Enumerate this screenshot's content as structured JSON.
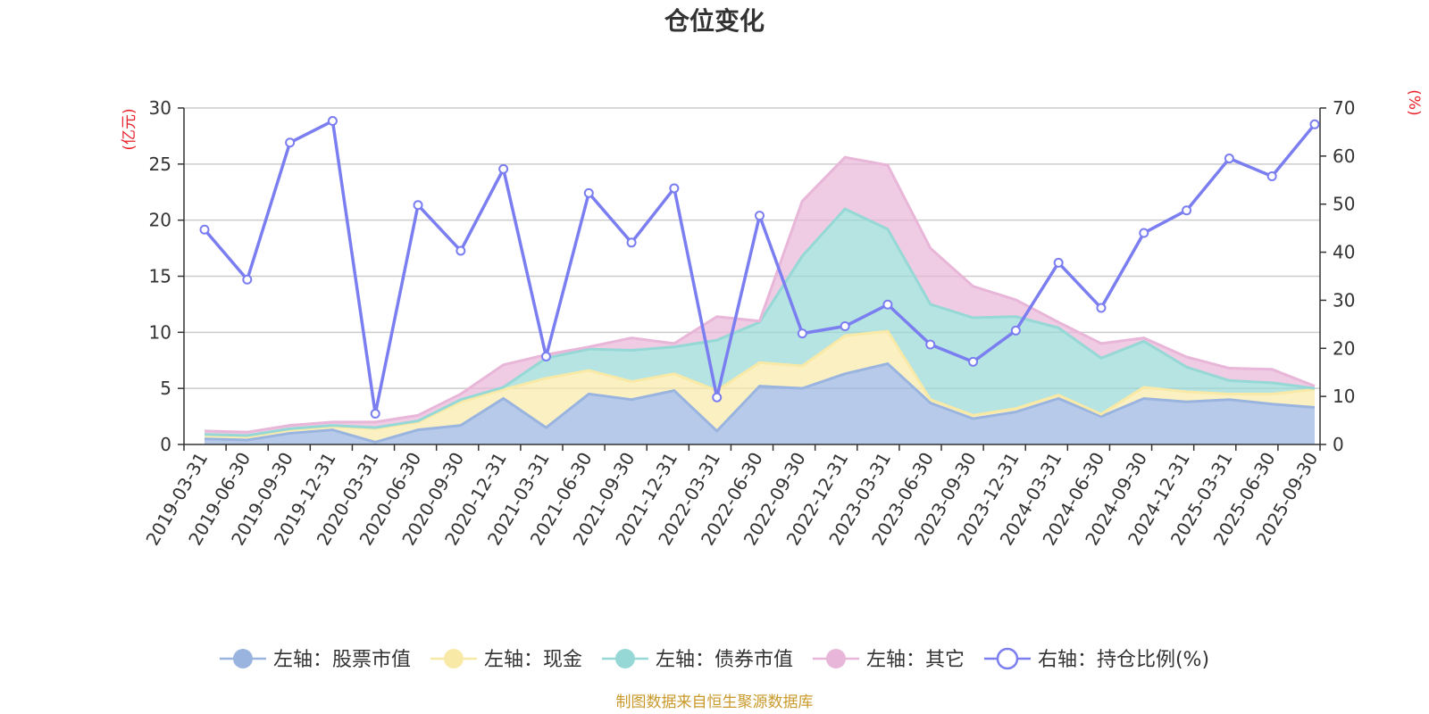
{
  "chart_data": {
    "type": "area",
    "title": "仓位变化",
    "left_axis_label": "(亿元)",
    "right_axis_label": "(%)",
    "categories": [
      "2019-03-31",
      "2019-06-30",
      "2019-09-30",
      "2019-12-31",
      "2020-03-31",
      "2020-06-30",
      "2020-09-30",
      "2020-12-31",
      "2021-03-31",
      "2021-06-30",
      "2021-09-30",
      "2021-12-31",
      "2022-03-31",
      "2022-06-30",
      "2022-09-30",
      "2022-12-31",
      "2023-03-31",
      "2023-06-30",
      "2023-09-30",
      "2023-12-31",
      "2024-03-31",
      "2024-06-30",
      "2024-09-30",
      "2024-12-31",
      "2025-03-31",
      "2025-06-30",
      "2025-09-30"
    ],
    "ylim_left": [
      0,
      30
    ],
    "yticks_left": [
      0,
      5,
      10,
      15,
      20,
      25,
      30
    ],
    "ylim_right": [
      0,
      70
    ],
    "yticks_right": [
      0,
      10,
      20,
      30,
      40,
      50,
      60,
      70
    ],
    "series": [
      {
        "name": "左轴：股票市值",
        "axis": "left",
        "stacked": true,
        "color": "#9ab4e0",
        "values": [
          0.5,
          0.4,
          1.0,
          1.3,
          0.2,
          1.3,
          1.7,
          4.1,
          1.5,
          4.5,
          4.0,
          4.8,
          1.2,
          5.2,
          5.0,
          6.3,
          7.2,
          3.7,
          2.3,
          2.9,
          4.1,
          2.5,
          4.1,
          3.8,
          4.0,
          3.6,
          3.3
        ]
      },
      {
        "name": "左轴：现金",
        "axis": "left",
        "stacked": true,
        "color": "#f9e9a6",
        "values": [
          0.3,
          0.3,
          0.3,
          0.3,
          1.2,
          0.7,
          2.1,
          0.8,
          4.4,
          2.1,
          1.6,
          1.5,
          3.6,
          2.1,
          2.0,
          3.4,
          2.9,
          0.3,
          0.3,
          0.3,
          0.3,
          0.2,
          1.0,
          0.9,
          0.5,
          0.9,
          1.6
        ]
      },
      {
        "name": "左轴：债券市值",
        "axis": "left",
        "stacked": true,
        "color": "#96d8d6",
        "values": [
          0.1,
          0.1,
          0.1,
          0.1,
          0.1,
          0.1,
          0.2,
          0.2,
          1.8,
          1.9,
          2.8,
          2.4,
          4.5,
          3.6,
          9.8,
          11.3,
          9.1,
          8.5,
          8.7,
          8.2,
          6.0,
          5.0,
          4.1,
          2.2,
          1.2,
          1.0,
          0.1
        ]
      },
      {
        "name": "左轴：其它",
        "axis": "left",
        "stacked": true,
        "color": "#e8b6d8",
        "values": [
          0.3,
          0.3,
          0.3,
          0.3,
          0.5,
          0.5,
          0.5,
          2.0,
          0.3,
          0.2,
          1.1,
          0.3,
          2.1,
          0.1,
          4.9,
          4.6,
          5.7,
          5.0,
          2.8,
          1.5,
          0.5,
          1.3,
          0.3,
          0.9,
          1.1,
          1.2,
          0.2
        ]
      },
      {
        "name": "右轴：持仓比例(%)",
        "axis": "right",
        "stacked": false,
        "color": "#7b7ef0",
        "values": [
          44.7,
          34.3,
          62.8,
          67.3,
          6.4,
          49.8,
          40.3,
          57.3,
          18.3,
          52.3,
          42.0,
          53.3,
          9.8,
          47.6,
          23.1,
          24.6,
          29.1,
          20.8,
          17.2,
          23.7,
          37.8,
          28.4,
          44.0,
          48.7,
          59.5,
          55.8,
          66.6
        ]
      }
    ]
  },
  "legend": [
    {
      "label": "左轴：股票市值",
      "icon": "filled-circle",
      "color": "#9ab4e0"
    },
    {
      "label": "左轴：现金",
      "icon": "filled-circle",
      "color": "#f9e9a6"
    },
    {
      "label": "左轴：债券市值",
      "icon": "filled-circle",
      "color": "#96d8d6"
    },
    {
      "label": "左轴：其它",
      "icon": "filled-circle",
      "color": "#e8b6d8"
    },
    {
      "label": "右轴：持仓比例(%)",
      "icon": "hollow-circle",
      "color": "#7b7ef0"
    }
  ],
  "source_note": "制图数据来自恒生聚源数据库",
  "colors": {
    "axis_unit": "#e8212a",
    "source": "#c9992a",
    "grid": "#cccccc",
    "axis": "#333333"
  }
}
